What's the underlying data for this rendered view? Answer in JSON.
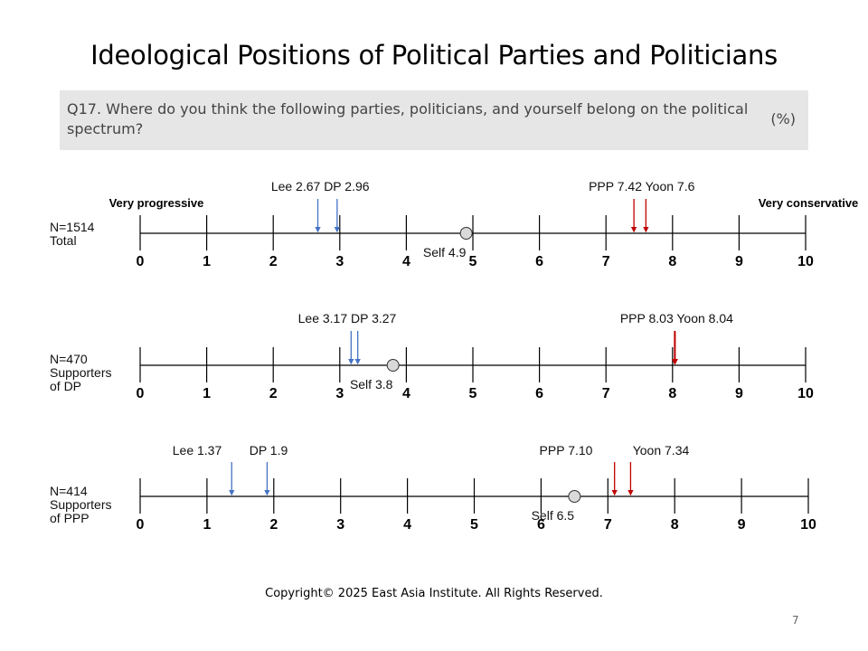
{
  "title": "Ideological Positions of Political Parties and Politicians",
  "question": {
    "text": "Q17. Where do you think the following parties, politicians, and yourself belong on the political spectrum?",
    "unit": "(%)"
  },
  "footer": "Copyright© 2025 East Asia Institute. All Rights Reserved.",
  "page_number": "7",
  "colors": {
    "progressive": "#4472c4",
    "conservative": "#c00000",
    "self_fill": "#d9d9d9",
    "axis": "#000000"
  },
  "chart_data": [
    {
      "type": "scatter",
      "group_label_lines": [
        "N=1514",
        "Total"
      ],
      "xlim": [
        0,
        10
      ],
      "ticks": [
        "0",
        "1",
        "2",
        "3",
        "4",
        "5",
        "6",
        "7",
        "8",
        "9",
        "10"
      ],
      "end_labels": {
        "left": "Very progressive",
        "right": "Very conservative"
      },
      "markers": [
        {
          "name": "Lee",
          "value": 2.67,
          "side": "progressive"
        },
        {
          "name": "DP",
          "value": 2.96,
          "side": "progressive"
        },
        {
          "name": "PPP",
          "value": 7.42,
          "side": "conservative"
        },
        {
          "name": "Yoon",
          "value": 7.6,
          "side": "conservative"
        }
      ],
      "marker_labels": {
        "progressive": "Lee 2.67 DP 2.96",
        "conservative": "PPP 7.42  Yoon 7.6"
      },
      "self": {
        "value": 4.9,
        "label": "Self 4.9"
      }
    },
    {
      "type": "scatter",
      "group_label_lines": [
        "N=470",
        "Supporters",
        "of DP"
      ],
      "xlim": [
        0,
        10
      ],
      "ticks": [
        "0",
        "1",
        "2",
        "3",
        "4",
        "5",
        "6",
        "7",
        "8",
        "9",
        "10"
      ],
      "markers": [
        {
          "name": "Lee",
          "value": 3.17,
          "side": "progressive"
        },
        {
          "name": "DP",
          "value": 3.27,
          "side": "progressive"
        },
        {
          "name": "PPP",
          "value": 8.03,
          "side": "conservative"
        },
        {
          "name": "Yoon",
          "value": 8.04,
          "side": "conservative"
        }
      ],
      "marker_labels": {
        "progressive": "Lee 3.17 DP 3.27",
        "conservative": "PPP 8.03 Yoon 8.04"
      },
      "self": {
        "value": 3.8,
        "label": "Self 3.8"
      }
    },
    {
      "type": "scatter",
      "group_label_lines": [
        "N=414",
        "Supporters",
        "of PPP"
      ],
      "xlim": [
        0,
        10
      ],
      "ticks": [
        "0",
        "1",
        "2",
        "3",
        "4",
        "5",
        "6",
        "7",
        "8",
        "9",
        "10"
      ],
      "markers": [
        {
          "name": "Lee",
          "value": 1.37,
          "side": "progressive"
        },
        {
          "name": "DP",
          "value": 1.9,
          "side": "progressive"
        },
        {
          "name": "PPP",
          "value": 7.1,
          "side": "conservative"
        },
        {
          "name": "Yoon",
          "value": 7.34,
          "side": "conservative"
        }
      ],
      "marker_labels_split": [
        "Lee 1.37",
        "DP 1.9",
        "PPP 7.10",
        "Yoon 7.34"
      ],
      "self": {
        "value": 6.5,
        "label": "Self 6.5"
      }
    }
  ]
}
